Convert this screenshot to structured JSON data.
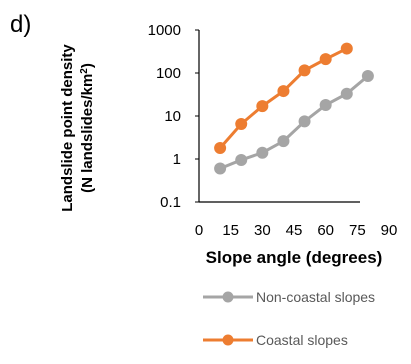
{
  "panel_label": "d)",
  "chart_data": {
    "type": "line",
    "title": "",
    "ylabel_lines": [
      "Landslide point density",
      "(N landslides/km",
      "2",
      ")"
    ],
    "xlabel": "Slope angle (degrees)",
    "y_scale": "log",
    "ylim": [
      0.1,
      1000
    ],
    "xlim": [
      0,
      90
    ],
    "x_ticks": [
      0,
      15,
      30,
      45,
      60,
      75,
      90
    ],
    "x_tick_labels": [
      "0",
      "15",
      "30",
      "45",
      "60",
      "75",
      "90"
    ],
    "y_ticks": [
      0.1,
      1,
      10,
      100,
      1000
    ],
    "y_tick_labels": [
      "0.1",
      "1",
      "10",
      "100",
      "1000"
    ],
    "grid": false,
    "legend_position": "bottom",
    "series": [
      {
        "name": "Non-coastal slopes",
        "color": "#a5a5a5",
        "x": [
          10,
          20,
          30,
          40,
          50,
          60,
          70,
          80
        ],
        "y": [
          0.6,
          0.95,
          1.4,
          2.6,
          7.5,
          18,
          33,
          85
        ]
      },
      {
        "name": "Coastal slopes",
        "color": "#ed7d31",
        "x": [
          10,
          20,
          30,
          40,
          50,
          60,
          70
        ],
        "y": [
          1.8,
          6.5,
          17,
          38,
          115,
          210,
          370
        ]
      }
    ]
  }
}
